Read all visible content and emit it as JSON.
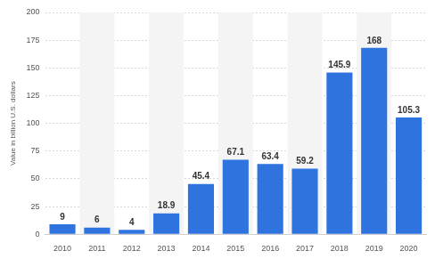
{
  "chart_data": {
    "type": "bar",
    "y_label": "Value in billion U.S. dollars",
    "categories": [
      "2010",
      "2011",
      "2012",
      "2013",
      "2014",
      "2015",
      "2016",
      "2017",
      "2018",
      "2019",
      "2020"
    ],
    "values": [
      9,
      6,
      4,
      18.9,
      45.4,
      67.1,
      63.4,
      59.2,
      145.9,
      168,
      105.3
    ],
    "color": "#2f73df",
    "ylim": [
      0,
      200
    ],
    "yticks": [
      0,
      25,
      50,
      75,
      100,
      125,
      150,
      175,
      200
    ],
    "grid": true,
    "data_labels": true
  }
}
